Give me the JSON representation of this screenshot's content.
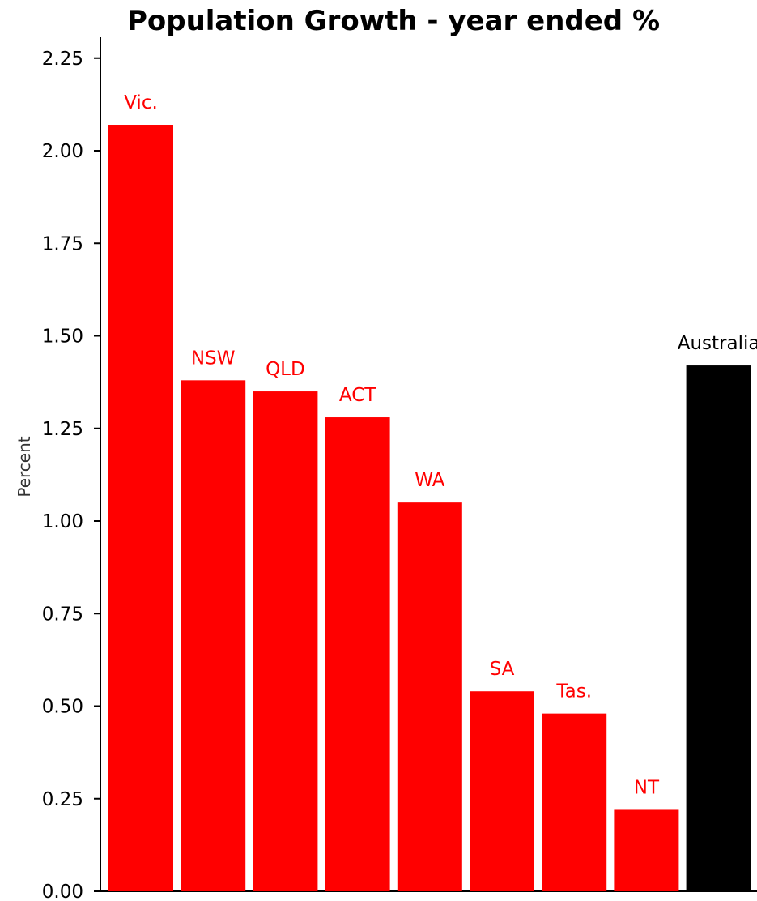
{
  "chart_data": {
    "type": "bar",
    "title": "Population Growth - year ended %",
    "ylabel": "Percent",
    "xlabel": "",
    "ylim": [
      0,
      2.28
    ],
    "yticks": [
      "0.00",
      "0.25",
      "0.50",
      "0.75",
      "1.00",
      "1.25",
      "1.50",
      "1.75",
      "2.00",
      "2.25"
    ],
    "categories": [
      "Vic.",
      "NSW",
      "QLD",
      "ACT",
      "WA",
      "SA",
      "Tas.",
      "NT",
      "Australia"
    ],
    "values": [
      2.07,
      1.38,
      1.35,
      1.28,
      1.05,
      0.54,
      0.48,
      0.22,
      1.42
    ],
    "colors": [
      "#ff0000",
      "#ff0000",
      "#ff0000",
      "#ff0000",
      "#ff0000",
      "#ff0000",
      "#ff0000",
      "#ff0000",
      "#000000"
    ],
    "label_colors": [
      "#ff0000",
      "#ff0000",
      "#ff0000",
      "#ff0000",
      "#ff0000",
      "#ff0000",
      "#ff0000",
      "#ff0000",
      "#000000"
    ],
    "grid": false,
    "legend": "none"
  }
}
